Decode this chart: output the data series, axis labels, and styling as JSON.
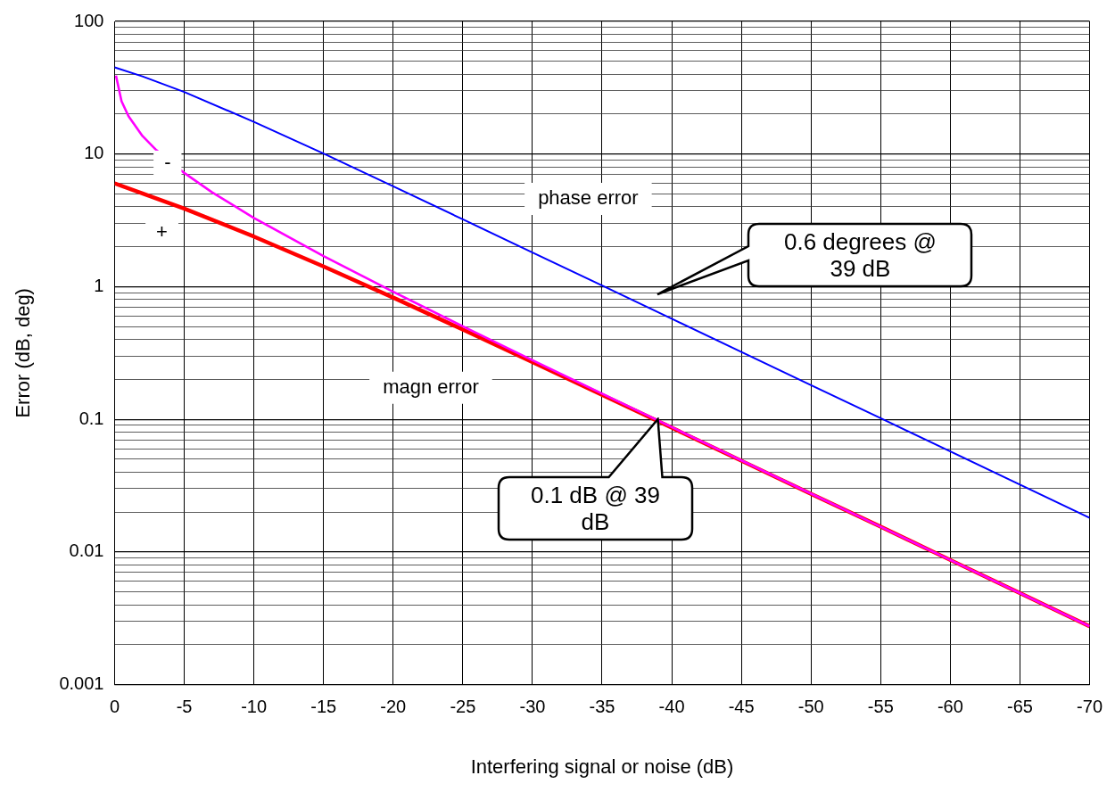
{
  "chart_data": {
    "type": "line",
    "xlabel": "Interfering signal or noise (dB)",
    "ylabel": "Error (dB, deg)",
    "xlim": [
      0,
      -70
    ],
    "xticks": [
      0,
      -5,
      -10,
      -15,
      -20,
      -25,
      -30,
      -35,
      -40,
      -45,
      -50,
      -55,
      -60,
      -65,
      -70
    ],
    "ylim": [
      0.001,
      100
    ],
    "yticks": [
      0.001,
      0.01,
      0.1,
      1,
      10,
      100
    ],
    "log": "y",
    "grid": true,
    "legend": false,
    "marker": "none",
    "line_style": "solid",
    "series": [
      {
        "name": "phase error",
        "color": "#0000ff",
        "x": [
          0,
          -2,
          -5,
          -10,
          -15,
          -20,
          -25,
          -30,
          -35,
          -40,
          -45,
          -50,
          -55,
          -60,
          -65,
          -70
        ],
        "values": [
          45,
          38.5,
          29.4,
          17.5,
          10.1,
          5.71,
          3.22,
          1.81,
          1.02,
          0.573,
          0.322,
          0.181,
          0.102,
          0.0573,
          0.0322,
          0.0181
        ]
      },
      {
        "name": "-",
        "color": "#ff00ff",
        "x": [
          -0.1,
          -0.5,
          -1,
          -2,
          -3,
          -5,
          -7,
          -10,
          -15,
          -20,
          -25,
          -30,
          -35,
          -40,
          -45,
          -50,
          -55,
          -60,
          -65,
          -70
        ],
        "values": [
          39,
          25,
          19.3,
          13.7,
          10.7,
          7.2,
          5.15,
          3.3,
          1.7,
          0.915,
          0.503,
          0.279,
          0.156,
          0.0873,
          0.049,
          0.0275,
          0.0155,
          0.0087,
          0.0049,
          0.00275
        ]
      },
      {
        "name": "+",
        "color": "#ff0000",
        "x": [
          0,
          -2,
          -5,
          -10,
          -15,
          -20,
          -25,
          -30,
          -35,
          -40,
          -45,
          -50,
          -55,
          -60,
          -65,
          -70
        ],
        "values": [
          6.02,
          5.05,
          3.88,
          2.39,
          1.42,
          0.828,
          0.475,
          0.27,
          0.153,
          0.0864,
          0.0487,
          0.0274,
          0.0155,
          0.0087,
          0.0049,
          0.00275
        ]
      }
    ],
    "annotations": [
      "magn error",
      "0.6 degrees @ 39 dB",
      "0.1 dB @ 39 dB"
    ]
  }
}
